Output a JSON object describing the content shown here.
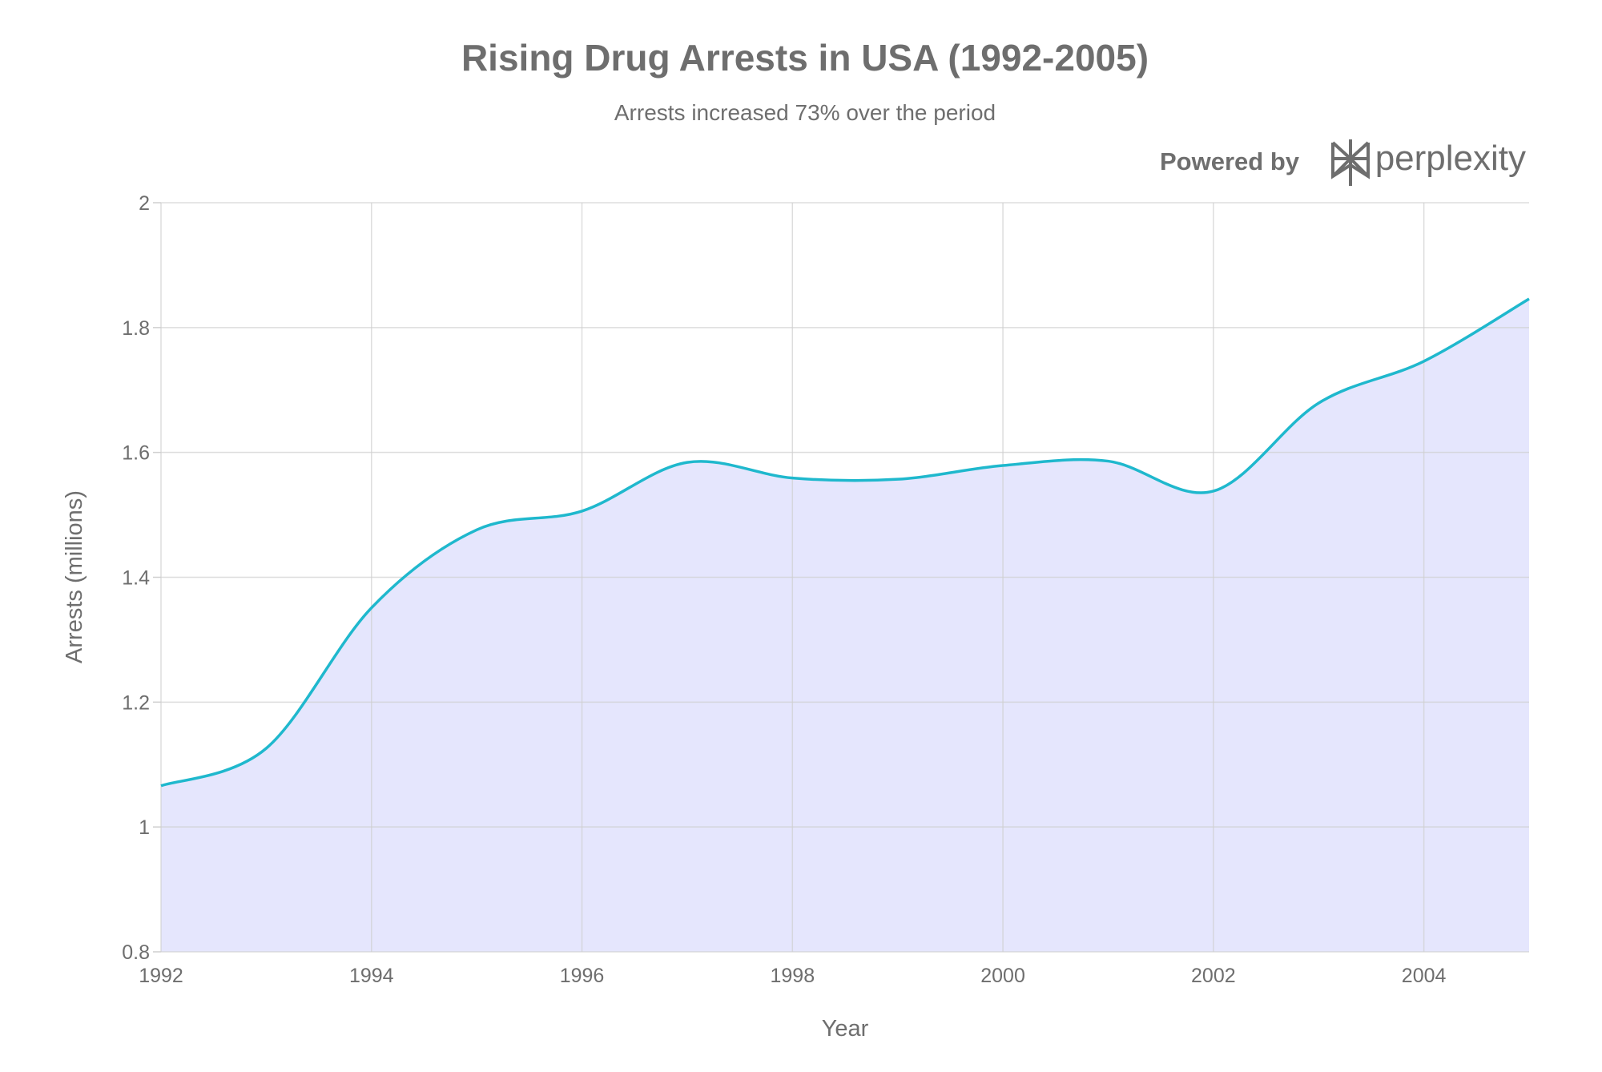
{
  "chart_data": {
    "type": "area",
    "title": "Rising Drug Arrests in USA (1992-2005)",
    "subtitle": "Arrests increased 73% over the period",
    "xlabel": "Year",
    "ylabel": "Arrests (millions)",
    "x": [
      1992,
      1993,
      1994,
      1995,
      1996,
      1997,
      1998,
      1999,
      2000,
      2001,
      2002,
      2003,
      2004,
      2005
    ],
    "values": [
      1.066,
      1.126,
      1.351,
      1.476,
      1.506,
      1.584,
      1.559,
      1.557,
      1.579,
      1.586,
      1.538,
      1.679,
      1.746,
      1.846
    ],
    "xlim": [
      1992,
      2005
    ],
    "ylim": [
      0.8,
      2
    ],
    "xticks": [
      "1992",
      "1994",
      "1996",
      "1998",
      "2000",
      "2002",
      "2004"
    ],
    "yticks": [
      "0.8",
      "1",
      "1.2",
      "1.4",
      "1.6",
      "1.8",
      "2"
    ],
    "grid": true,
    "smoothing": "spline",
    "colors": {
      "line": "#1fb8cd",
      "fill": "#e0e2fd",
      "grid": "#cfcfcf",
      "text": "#6e6e6e"
    }
  },
  "branding": {
    "powered_by": "Powered by",
    "logo_text": "perplexity"
  }
}
